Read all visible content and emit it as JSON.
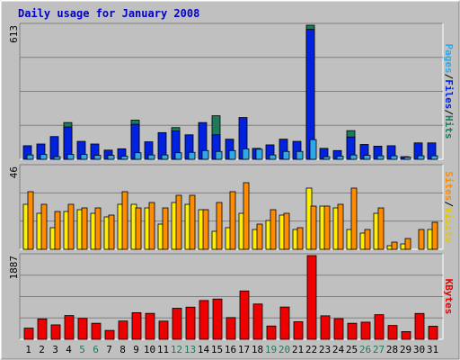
{
  "chart_data": [
    {
      "type": "bar",
      "title": "Daily usage for January 2008",
      "categories": [
        "1",
        "2",
        "3",
        "4",
        "5",
        "6",
        "7",
        "8",
        "9",
        "10",
        "11",
        "12",
        "13",
        "14",
        "15",
        "16",
        "17",
        "18",
        "19",
        "20",
        "21",
        "22",
        "23",
        "24",
        "25",
        "26",
        "27",
        "28",
        "29",
        "30",
        "31"
      ],
      "weekend_days": [
        "5",
        "6",
        "12",
        "13",
        "19",
        "20",
        "26",
        "27"
      ],
      "ymax_label": "613",
      "ylim": [
        0,
        613
      ],
      "ylabel_parts": [
        "Pages",
        "Files",
        "Hits"
      ],
      "series": [
        {
          "name": "Hits",
          "color": "#1f7a5a",
          "values": [
            0,
            0,
            0,
            168,
            0,
            0,
            0,
            0,
            179,
            0,
            0,
            145,
            0,
            0,
            199,
            0,
            0,
            0,
            0,
            0,
            0,
            613,
            0,
            0,
            131,
            0,
            0,
            0,
            0,
            0,
            0
          ]
        },
        {
          "name": "Files",
          "color": "#0021e0",
          "values": [
            62,
            70,
            104,
            148,
            82,
            70,
            42,
            48,
            160,
            80,
            122,
            130,
            112,
            168,
            112,
            92,
            191,
            50,
            66,
            92,
            82,
            594,
            50,
            40,
            102,
            68,
            60,
            62,
            12,
            75,
            75
          ]
        },
        {
          "name": "Pages",
          "color": "#30a8e8",
          "values": [
            20,
            22,
            12,
            22,
            22,
            18,
            18,
            14,
            30,
            20,
            20,
            30,
            32,
            40,
            36,
            40,
            48,
            46,
            20,
            36,
            36,
            90,
            12,
            14,
            20,
            18,
            16,
            16,
            10,
            16,
            16
          ]
        }
      ]
    },
    {
      "type": "bar",
      "ymax_label": "46",
      "ylim": [
        0,
        46
      ],
      "ylabel_parts": [
        "Sites",
        "Visits"
      ],
      "series": [
        {
          "name": "Visits",
          "color": "#ffee00",
          "values": [
            25,
            20,
            12,
            21,
            22,
            20,
            18,
            25,
            25,
            23,
            14,
            26,
            25,
            22,
            10,
            12,
            20,
            11,
            16,
            19,
            11,
            34,
            24,
            23,
            11,
            9,
            20,
            2,
            3,
            0,
            11
          ]
        },
        {
          "name": "Sites",
          "color": "#ff8c00",
          "values": [
            32,
            25,
            21,
            25,
            23,
            23,
            19,
            32,
            23,
            26,
            23,
            30,
            30,
            22,
            26,
            32,
            37,
            14,
            22,
            20,
            12,
            24,
            24,
            25,
            34,
            11,
            23,
            4,
            6,
            11,
            15
          ]
        }
      ]
    },
    {
      "type": "bar",
      "ymax_label": "1887",
      "ylim": [
        0,
        1887
      ],
      "ylabel_parts": [
        "KBytes"
      ],
      "series": [
        {
          "name": "KBytes",
          "color": "#ee0000",
          "values": [
            252,
            460,
            326,
            536,
            472,
            362,
            200,
            412,
            600,
            585,
            410,
            700,
            725,
            875,
            908,
            490,
            1090,
            796,
            300,
            728,
            396,
            1887,
            530,
            466,
            362,
            387,
            555,
            312,
            174,
            583,
            295
          ]
        }
      ]
    }
  ]
}
